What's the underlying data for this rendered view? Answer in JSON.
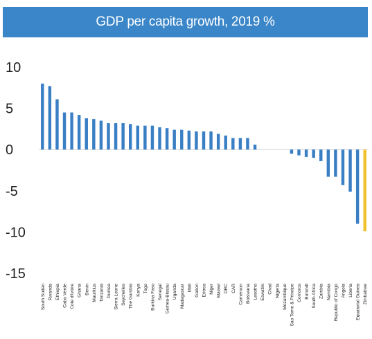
{
  "chart_data": {
    "type": "bar",
    "title": "GDP per capita growth, 2019 %",
    "xlabel": "",
    "ylabel": "",
    "ylim": [
      -15,
      10
    ],
    "yticks": [
      10,
      5,
      0,
      -5,
      -10,
      -15
    ],
    "grid": false,
    "legend": "none",
    "colors": {
      "bar": "#3a7fc4",
      "highlight": "#f2c12e",
      "title_background": "#3a86c8",
      "title_text": "#ffffff",
      "axis_text": "#222222"
    },
    "highlight_category": "Zimbabwe",
    "categories": [
      "South Sudan",
      "Rwanda",
      "Ethiopia",
      "Cabo Verde",
      "Cote d'Ivoire",
      "Ghana",
      "Benin",
      "Mauritius",
      "Tanzania",
      "Guinea",
      "Sierra Leone",
      "Seychelles",
      "The Gambia",
      "Kenya",
      "Togo",
      "Burkina Faso",
      "Senegal",
      "Guinea-Bissau",
      "Uganda",
      "Madagascar",
      "Mali",
      "Gabon",
      "Eritrea",
      "Niger",
      "Malawi",
      "DRC",
      "CAR",
      "Cameroon",
      "Botswana",
      "Lesotho",
      "Eswatini",
      "Chad",
      "Nigeria",
      "Mozambique",
      "Sao Tome & Principe",
      "Comoros",
      "Burundi",
      "South Africa",
      "Zambia",
      "Namibia",
      "Republic of Congo",
      "Angola",
      "Liberia",
      "Equatorial Guinea",
      "Zimbabwe"
    ],
    "values": [
      8.0,
      7.7,
      6.1,
      4.5,
      4.5,
      4.2,
      3.8,
      3.7,
      3.5,
      3.2,
      3.2,
      3.2,
      3.1,
      2.9,
      2.9,
      2.9,
      2.7,
      2.6,
      2.4,
      2.4,
      2.3,
      2.2,
      2.2,
      2.2,
      1.9,
      1.7,
      1.4,
      1.4,
      1.4,
      0.6,
      0.0,
      0.0,
      0.0,
      0.0,
      -0.5,
      -0.7,
      -0.9,
      -1.0,
      -1.4,
      -3.3,
      -3.3,
      -4.3,
      -5.1,
      -9.0,
      -9.9
    ]
  }
}
